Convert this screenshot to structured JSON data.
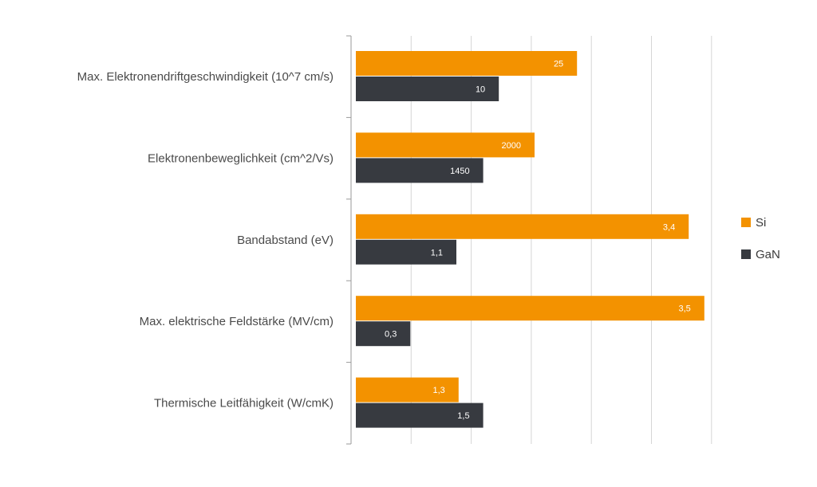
{
  "chart_data": {
    "type": "bar",
    "orientation": "horizontal",
    "categories": [
      "Max. Elektronendriftgeschwindigkeit (10^7 cm/s)",
      "Elektronenbeweglichkeit (cm^2/Vs)",
      "Bandabstand (eV)",
      "Max. elektrische Feldstärke (MV/cm)",
      "Thermische Leitfähigkeit (W/cmK)"
    ],
    "series": [
      {
        "name": "Si",
        "color": "#f39200",
        "labels": [
          "25",
          "2000",
          "3,4",
          "3,5",
          "1,3"
        ],
        "bar_fraction": [
          0.495,
          0.4,
          0.745,
          0.78,
          0.23
        ]
      },
      {
        "name": "GaN",
        "color": "#373a40",
        "labels": [
          "10",
          "1450",
          "1,1",
          "0,3",
          "1,5"
        ],
        "bar_fraction": [
          0.32,
          0.285,
          0.225,
          0.122,
          0.285
        ]
      }
    ],
    "gridlines": 6,
    "grid": true,
    "legend_position": "right"
  }
}
